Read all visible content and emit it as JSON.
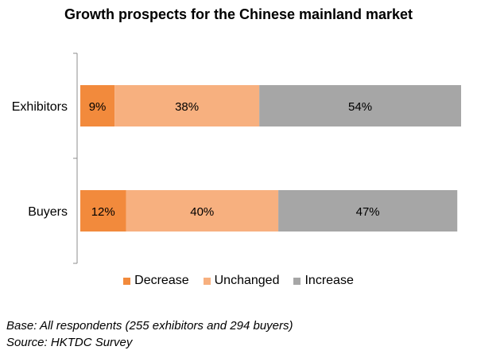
{
  "chart_data": {
    "type": "bar",
    "orientation": "horizontal",
    "stacked": true,
    "title": "Growth prospects for the Chinese mainland market",
    "categories": [
      "Exhibitors",
      "Buyers"
    ],
    "series": [
      {
        "name": "Decrease",
        "values": [
          9,
          12
        ],
        "labels": [
          "9%",
          "12%"
        ],
        "color": "#f28a3c"
      },
      {
        "name": "Unchanged",
        "values": [
          38,
          40
        ],
        "labels": [
          "38%",
          "40%"
        ],
        "color": "#f7b07f"
      },
      {
        "name": "Increase",
        "values": [
          54,
          47
        ],
        "labels": [
          "54%",
          "47%"
        ],
        "color": "#a6a6a6"
      }
    ],
    "xlim": [
      0,
      100
    ],
    "grid": false,
    "legend_position": "bottom"
  },
  "footnotes": {
    "base": "Base: All respondents (255 exhibitors and 294 buyers)",
    "source": "Source: HKTDC Survey"
  }
}
